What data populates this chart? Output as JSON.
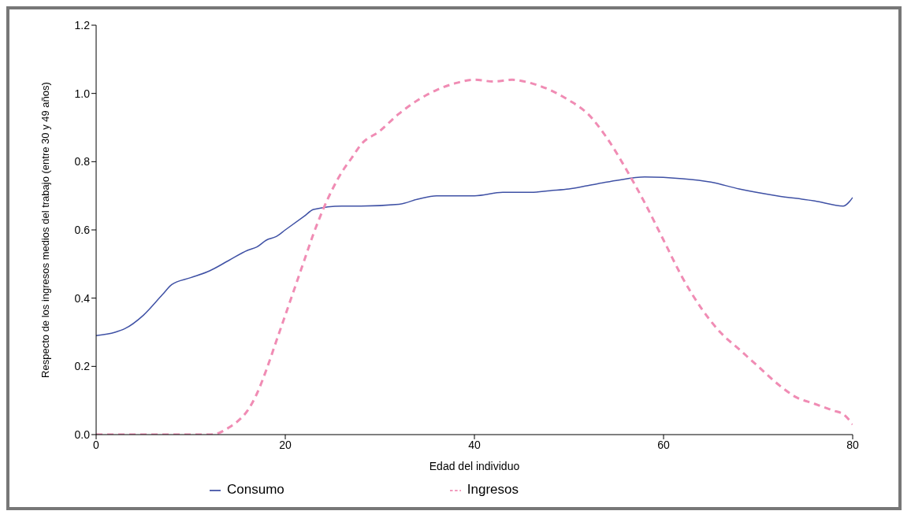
{
  "chart_data": {
    "type": "line",
    "xlabel": "Edad del individuo",
    "ylabel": "Respecto de los ingresos medios del trabajo (entre 30 y 49 años)",
    "xlim": [
      0,
      80
    ],
    "xticks": [
      0,
      20,
      40,
      60,
      80
    ],
    "ylim": [
      0,
      1.2
    ],
    "yticks": [
      {
        "value": 0,
        "label": "0.0"
      },
      {
        "value": 0.2,
        "label": "0.2"
      },
      {
        "value": 0.4,
        "label": "0.4"
      },
      {
        "value": 0.6,
        "label": "0.6"
      },
      {
        "value": 0.8,
        "label": "0.8"
      },
      {
        "value": 1,
        "label": "1.0"
      },
      {
        "value": 1.2,
        "label": "1.2"
      }
    ],
    "grid": false,
    "legend": "bottom",
    "marker": "none",
    "series": [
      {
        "name": "Consumo",
        "color": "#3f51a5",
        "line_style": "solid",
        "x": [
          0,
          2,
          3,
          5,
          7,
          8,
          10,
          12,
          14,
          16,
          17,
          18,
          19,
          20,
          22,
          23,
          26,
          28,
          32,
          34,
          36,
          38,
          40,
          43,
          46,
          48,
          50,
          52,
          55,
          58,
          62,
          65,
          68,
          72,
          76,
          79,
          80
        ],
        "values": [
          0.29,
          0.3,
          0.31,
          0.35,
          0.41,
          0.44,
          0.46,
          0.48,
          0.51,
          0.54,
          0.55,
          0.57,
          0.58,
          0.6,
          0.64,
          0.66,
          0.67,
          0.67,
          0.675,
          0.69,
          0.7,
          0.7,
          0.7,
          0.71,
          0.71,
          0.715,
          0.72,
          0.73,
          0.745,
          0.755,
          0.75,
          0.74,
          0.72,
          0.7,
          0.685,
          0.67,
          0.695
        ]
      },
      {
        "name": "Ingresos",
        "color": "#f08cb4",
        "line_style": "dashed",
        "x": [
          0,
          12,
          13,
          14,
          15,
          16,
          17,
          18,
          19,
          20,
          21,
          22,
          23,
          24,
          25,
          26,
          27,
          28,
          30,
          32,
          34,
          36,
          38,
          40,
          42,
          44,
          46,
          48,
          50,
          52,
          54,
          56,
          58,
          60,
          62,
          64,
          66,
          68,
          70,
          72,
          74,
          76,
          78,
          79,
          80
        ],
        "values": [
          0,
          0,
          0.005,
          0.02,
          0.04,
          0.07,
          0.12,
          0.19,
          0.27,
          0.35,
          0.43,
          0.51,
          0.59,
          0.66,
          0.72,
          0.77,
          0.81,
          0.85,
          0.89,
          0.94,
          0.98,
          1.01,
          1.03,
          1.04,
          1.035,
          1.04,
          1.03,
          1.01,
          0.98,
          0.94,
          0.87,
          0.78,
          0.68,
          0.57,
          0.46,
          0.37,
          0.3,
          0.25,
          0.2,
          0.15,
          0.11,
          0.09,
          0.07,
          0.06,
          0.03
        ]
      }
    ]
  }
}
